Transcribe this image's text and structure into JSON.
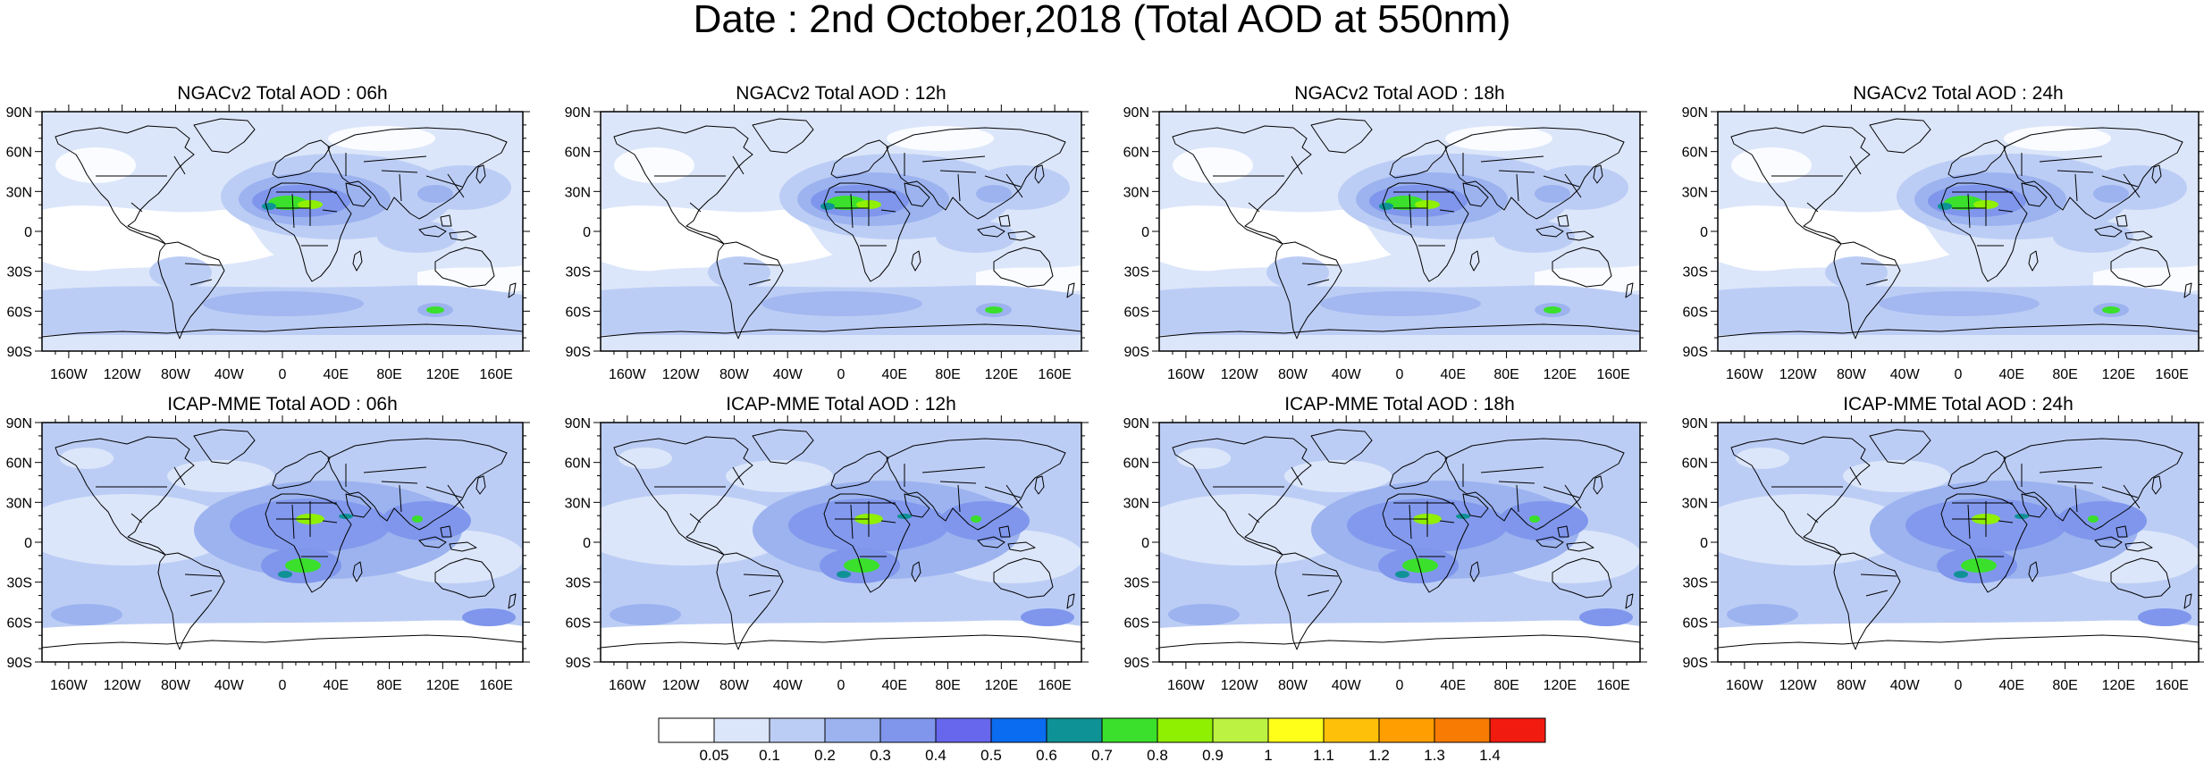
{
  "title": "Date : 2nd October,2018 (Total AOD at 550nm)",
  "lat_labels": [
    "90N",
    "60N",
    "30N",
    "0",
    "30S",
    "60S",
    "90S"
  ],
  "lon_labels": [
    "160W",
    "120W",
    "80W",
    "40W",
    "0",
    "40E",
    "80E",
    "120E",
    "160E"
  ],
  "lon_values": [
    -160,
    -120,
    -80,
    -40,
    0,
    40,
    80,
    120,
    160
  ],
  "lat_values": [
    90,
    60,
    30,
    0,
    -30,
    -60,
    -90
  ],
  "panels": [
    {
      "model": "ngac",
      "title": "NGACv2 Total AOD : 06h"
    },
    {
      "model": "ngac",
      "title": "NGACv2 Total AOD : 12h"
    },
    {
      "model": "ngac",
      "title": "NGACv2 Total AOD : 18h"
    },
    {
      "model": "ngac",
      "title": "NGACv2 Total AOD : 24h"
    },
    {
      "model": "icap",
      "title": "ICAP-MME Total AOD : 06h"
    },
    {
      "model": "icap",
      "title": "ICAP-MME Total AOD : 12h"
    },
    {
      "model": "icap",
      "title": "ICAP-MME Total AOD : 18h"
    },
    {
      "model": "icap",
      "title": "ICAP-MME Total AOD : 24h"
    }
  ],
  "colorbar": {
    "colors": [
      "#ffffff",
      "#dce6fa",
      "#bccdf5",
      "#9cb3ef",
      "#7f96ec",
      "#6767ee",
      "#0a6cf0",
      "#0f9296",
      "#3ae02b",
      "#8ff002",
      "#bcf241",
      "#ffff1a",
      "#fec008",
      "#fe9e00",
      "#f87c04",
      "#f21b10"
    ],
    "labels": [
      "0.05",
      "0.1",
      "0.2",
      "0.3",
      "0.4",
      "0.5",
      "0.6",
      "0.7",
      "0.8",
      "0.9",
      "1",
      "1.1",
      "1.2",
      "1.3",
      "1.4"
    ]
  }
}
